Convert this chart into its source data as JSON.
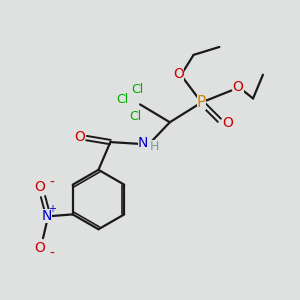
{
  "background_color": "#dfe0e0",
  "bond_color": "#1a1a1a",
  "colors": {
    "H": "#7a9a9a",
    "N": "#0000cc",
    "O": "#cc0000",
    "Cl": "#00aa00",
    "P": "#cc8800"
  },
  "figsize": [
    3.0,
    3.0
  ],
  "dpi": 100
}
